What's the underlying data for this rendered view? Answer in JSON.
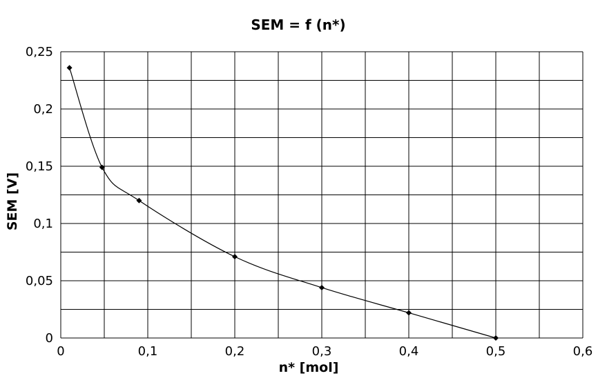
{
  "chart_data": {
    "type": "line",
    "title": "SEM = f (n*)",
    "xlabel": "n* [mol]",
    "ylabel": "SEM [V]",
    "xlim": [
      0,
      0.6
    ],
    "ylim": [
      0,
      0.25
    ],
    "x_ticks": [
      0,
      0.1,
      0.2,
      0.3,
      0.4,
      0.5,
      0.6
    ],
    "x_tick_labels": [
      "0",
      "0,1",
      "0,2",
      "0,3",
      "0,4",
      "0,5",
      "0,6"
    ],
    "y_ticks": [
      0,
      0.05,
      0.1,
      0.15,
      0.2,
      0.25
    ],
    "y_tick_labels": [
      "0",
      "0,05",
      "0,1",
      "0,15",
      "0,2",
      "0,25"
    ],
    "x_grid_step": 0.05,
    "y_grid_step": 0.025,
    "grid": true,
    "legend": "none",
    "series": [
      {
        "color": "#000000",
        "marker": "diamond",
        "smooth": true,
        "x": [
          0.01,
          0.0475,
          0.09,
          0.2,
          0.3,
          0.4,
          0.5
        ],
        "y": [
          0.236,
          0.149,
          0.12,
          0.071,
          0.044,
          0.022,
          0.0
        ]
      }
    ]
  }
}
